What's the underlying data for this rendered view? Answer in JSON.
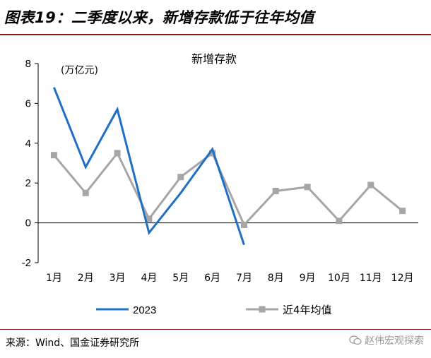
{
  "header": {
    "title": "图表19：二季度以来，新增存款低于往年均值"
  },
  "source": "来源：Wind、国金证券研究所",
  "watermark": {
    "text": "赵伟宏观探索",
    "icon": "wechat-icon"
  },
  "colors": {
    "accent_rule": "#8a1a1a",
    "series_2023": "#1f6fc5",
    "series_avg": "#a6a6a6"
  },
  "chart_data": {
    "type": "line",
    "title": "新增存款",
    "unit_label": "(万亿元)",
    "categories": [
      "1月",
      "2月",
      "3月",
      "4月",
      "5月",
      "6月",
      "7月",
      "8月",
      "9月",
      "10月",
      "11月",
      "12月"
    ],
    "ylim": [
      -2,
      8
    ],
    "yticks": [
      -2,
      0,
      2,
      4,
      6,
      8
    ],
    "grid": false,
    "legend_position": "bottom",
    "series": [
      {
        "name": "2023",
        "color": "#1f6fc5",
        "marker": "none",
        "values": [
          6.8,
          2.8,
          5.7,
          -0.5,
          1.5,
          3.7,
          -1.1,
          null,
          null,
          null,
          null,
          null
        ]
      },
      {
        "name": "近4年均值",
        "color": "#a6a6a6",
        "marker": "square",
        "values": [
          3.4,
          1.5,
          3.5,
          0.2,
          2.3,
          3.5,
          -0.1,
          1.6,
          1.8,
          0.1,
          1.9,
          0.6
        ]
      }
    ]
  }
}
